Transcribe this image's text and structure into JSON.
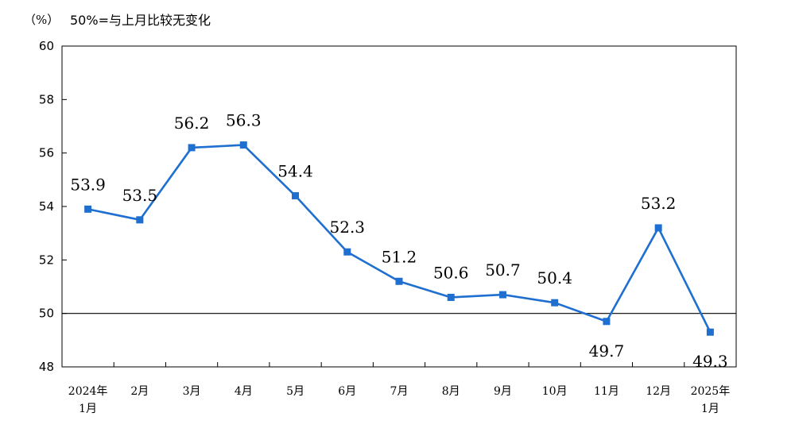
{
  "header": {
    "unit_label": "（%）",
    "note": "50%=与上月比较无变化"
  },
  "chart_data": {
    "type": "line",
    "title": "",
    "xlabel": "",
    "ylabel": "（%）",
    "categories": [
      [
        "2024年",
        "1月"
      ],
      [
        "2月"
      ],
      [
        "3月"
      ],
      [
        "4月"
      ],
      [
        "5月"
      ],
      [
        "6月"
      ],
      [
        "7月"
      ],
      [
        "8月"
      ],
      [
        "9月"
      ],
      [
        "10月"
      ],
      [
        "11月"
      ],
      [
        "12月"
      ],
      [
        "2025年",
        "1月"
      ]
    ],
    "series": [
      {
        "values": [
          53.9,
          53.5,
          56.2,
          56.3,
          54.4,
          52.3,
          51.2,
          50.6,
          50.7,
          50.4,
          49.7,
          53.2,
          49.3
        ]
      }
    ],
    "label_placement": [
      "above",
      "above",
      "above",
      "above",
      "above",
      "above",
      "above",
      "above",
      "above",
      "above",
      "below",
      "above",
      "below"
    ],
    "ylim": [
      48,
      60
    ],
    "yticks": [
      48,
      50,
      52,
      54,
      56,
      58,
      60
    ],
    "reference_line": 50,
    "grid": false,
    "colors": {
      "series": "#1f6fd1",
      "axis": "#000000"
    }
  }
}
